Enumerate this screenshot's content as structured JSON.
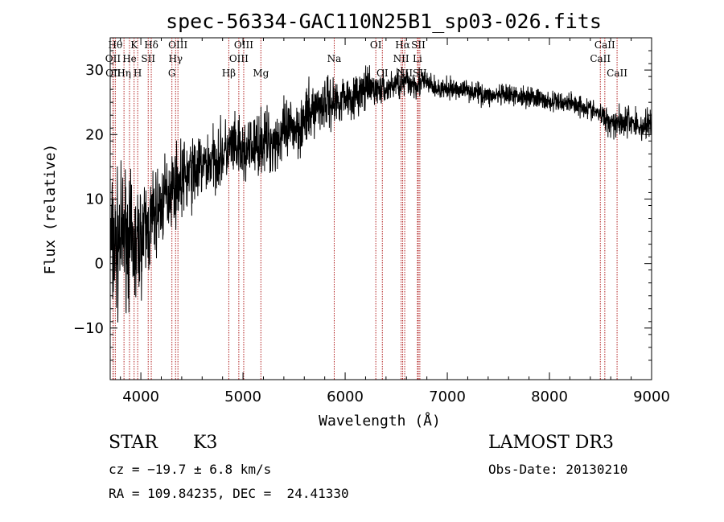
{
  "chart_data": {
    "type": "line",
    "title": "spec-56334-GAC110N25B1_sp03-026.fits",
    "xlabel": "Wavelength (Å)",
    "ylabel": "Flux (relative)",
    "xlim": [
      3700,
      9000
    ],
    "ylim": [
      -18,
      35
    ],
    "xticks": [
      4000,
      5000,
      6000,
      7000,
      8000,
      9000
    ],
    "xtick_labels": [
      "4000",
      "5000",
      "6000",
      "7000",
      "8000",
      "9000"
    ],
    "yticks": [
      -10,
      0,
      10,
      20,
      30
    ],
    "ytick_labels": [
      "−10",
      "0",
      "10",
      "20",
      "30"
    ],
    "series": [
      {
        "name": "flux",
        "x": [
          3700,
          3750,
          3800,
          3850,
          3900,
          3950,
          4000,
          4050,
          4100,
          4150,
          4200,
          4300,
          4400,
          4500,
          4600,
          4700,
          4800,
          4900,
          5000,
          5100,
          5200,
          5300,
          5400,
          5500,
          5600,
          5700,
          5800,
          5900,
          6000,
          6100,
          6200,
          6300,
          6400,
          6500,
          6600,
          6700,
          6800,
          6900,
          7000,
          7200,
          7400,
          7600,
          7800,
          8000,
          8200,
          8400,
          8500,
          8600,
          8700,
          8800,
          8900,
          9000
        ],
        "y": [
          3,
          2,
          4,
          5,
          3,
          2,
          4,
          5,
          6,
          8,
          9,
          12,
          13,
          14,
          15,
          16,
          17,
          18,
          17,
          18,
          19,
          19,
          20,
          21,
          22,
          24,
          25,
          25,
          26,
          26,
          27,
          27,
          27,
          28,
          28,
          28,
          28,
          27,
          27,
          27,
          26,
          26,
          26,
          25,
          25,
          24,
          23,
          22,
          22,
          22,
          21,
          22
        ],
        "noise": [
          7,
          7,
          6,
          6,
          6,
          6,
          5,
          5,
          5,
          4,
          4,
          3.5,
          3.5,
          3.5,
          3,
          3,
          3,
          3,
          3,
          3,
          3,
          3,
          3,
          3,
          3,
          2.5,
          2.5,
          2.5,
          2,
          2,
          2,
          1.5,
          1.5,
          1.5,
          1.5,
          1.5,
          1.2,
          1,
          1,
          1,
          1,
          1,
          1,
          1,
          1,
          1,
          1,
          1.5,
          1.5,
          1.5,
          1.5,
          1.5
        ]
      }
    ],
    "spectral_lines": [
      {
        "w": 3750,
        "label": "Hθ",
        "row": 0,
        "dx": 0
      },
      {
        "w": 3727,
        "label": "OII",
        "row": 1,
        "dx": 0
      },
      {
        "w": 3730,
        "label": "OII",
        "row": 2,
        "dx": 0
      },
      {
        "w": 3835,
        "label": "Hη",
        "row": 2,
        "dx": 0
      },
      {
        "w": 3889,
        "label": "He",
        "row": 1,
        "dx": 0
      },
      {
        "w": 3934,
        "label": "K",
        "row": 0,
        "dx": 0
      },
      {
        "w": 3969,
        "label": "H",
        "row": 2,
        "dx": 0
      },
      {
        "w": 4072,
        "label": "SII",
        "row": 1,
        "dx": 0
      },
      {
        "w": 4102,
        "label": "Hδ",
        "row": 0,
        "dx": 0
      },
      {
        "w": 4304,
        "label": "G",
        "row": 2,
        "dx": 0
      },
      {
        "w": 4340,
        "label": "Hγ",
        "row": 1,
        "dx": 0
      },
      {
        "w": 4363,
        "label": "OIII",
        "row": 0,
        "dx": 0
      },
      {
        "w": 4861,
        "label": "Hβ",
        "row": 2,
        "dx": 0
      },
      {
        "w": 4959,
        "label": "OIII",
        "row": 1,
        "dx": 0
      },
      {
        "w": 5007,
        "label": "OIII",
        "row": 0,
        "dx": 0
      },
      {
        "w": 5175,
        "label": "Mg",
        "row": 2,
        "dx": 0
      },
      {
        "w": 5893,
        "label": "Na",
        "row": 1,
        "dx": 0
      },
      {
        "w": 6300,
        "label": "OI",
        "row": 0,
        "dx": 0
      },
      {
        "w": 6364,
        "label": "OI",
        "row": 2,
        "dx": 0
      },
      {
        "w": 6548,
        "label": "NII",
        "row": 1,
        "dx": 0
      },
      {
        "w": 6563,
        "label": "Hα",
        "row": 0,
        "dx": 0
      },
      {
        "w": 6583,
        "label": "NII",
        "row": 2,
        "dx": 0
      },
      {
        "w": 6708,
        "label": "Li",
        "row": 1,
        "dx": 0
      },
      {
        "w": 6716,
        "label": "SII",
        "row": 0,
        "dx": 0
      },
      {
        "w": 6731,
        "label": "SII",
        "row": 2,
        "dx": 0
      },
      {
        "w": 8498,
        "label": "CaII",
        "row": 1,
        "dx": 0
      },
      {
        "w": 8542,
        "label": "CaII",
        "row": 0,
        "dx": 0
      },
      {
        "w": 8662,
        "label": "CaII",
        "row": 2,
        "dx": 0
      }
    ]
  },
  "info": {
    "class": "STAR",
    "subclass": "K3",
    "cz": "cz = −19.7 ± 6.8 km/s",
    "coords": "RA = 109.84235, DEC =  24.41330",
    "survey": "LAMOST DR3",
    "obs_date": "Obs-Date: 20130210"
  },
  "colors": {
    "line": "#000000",
    "marker": "#b22222"
  }
}
